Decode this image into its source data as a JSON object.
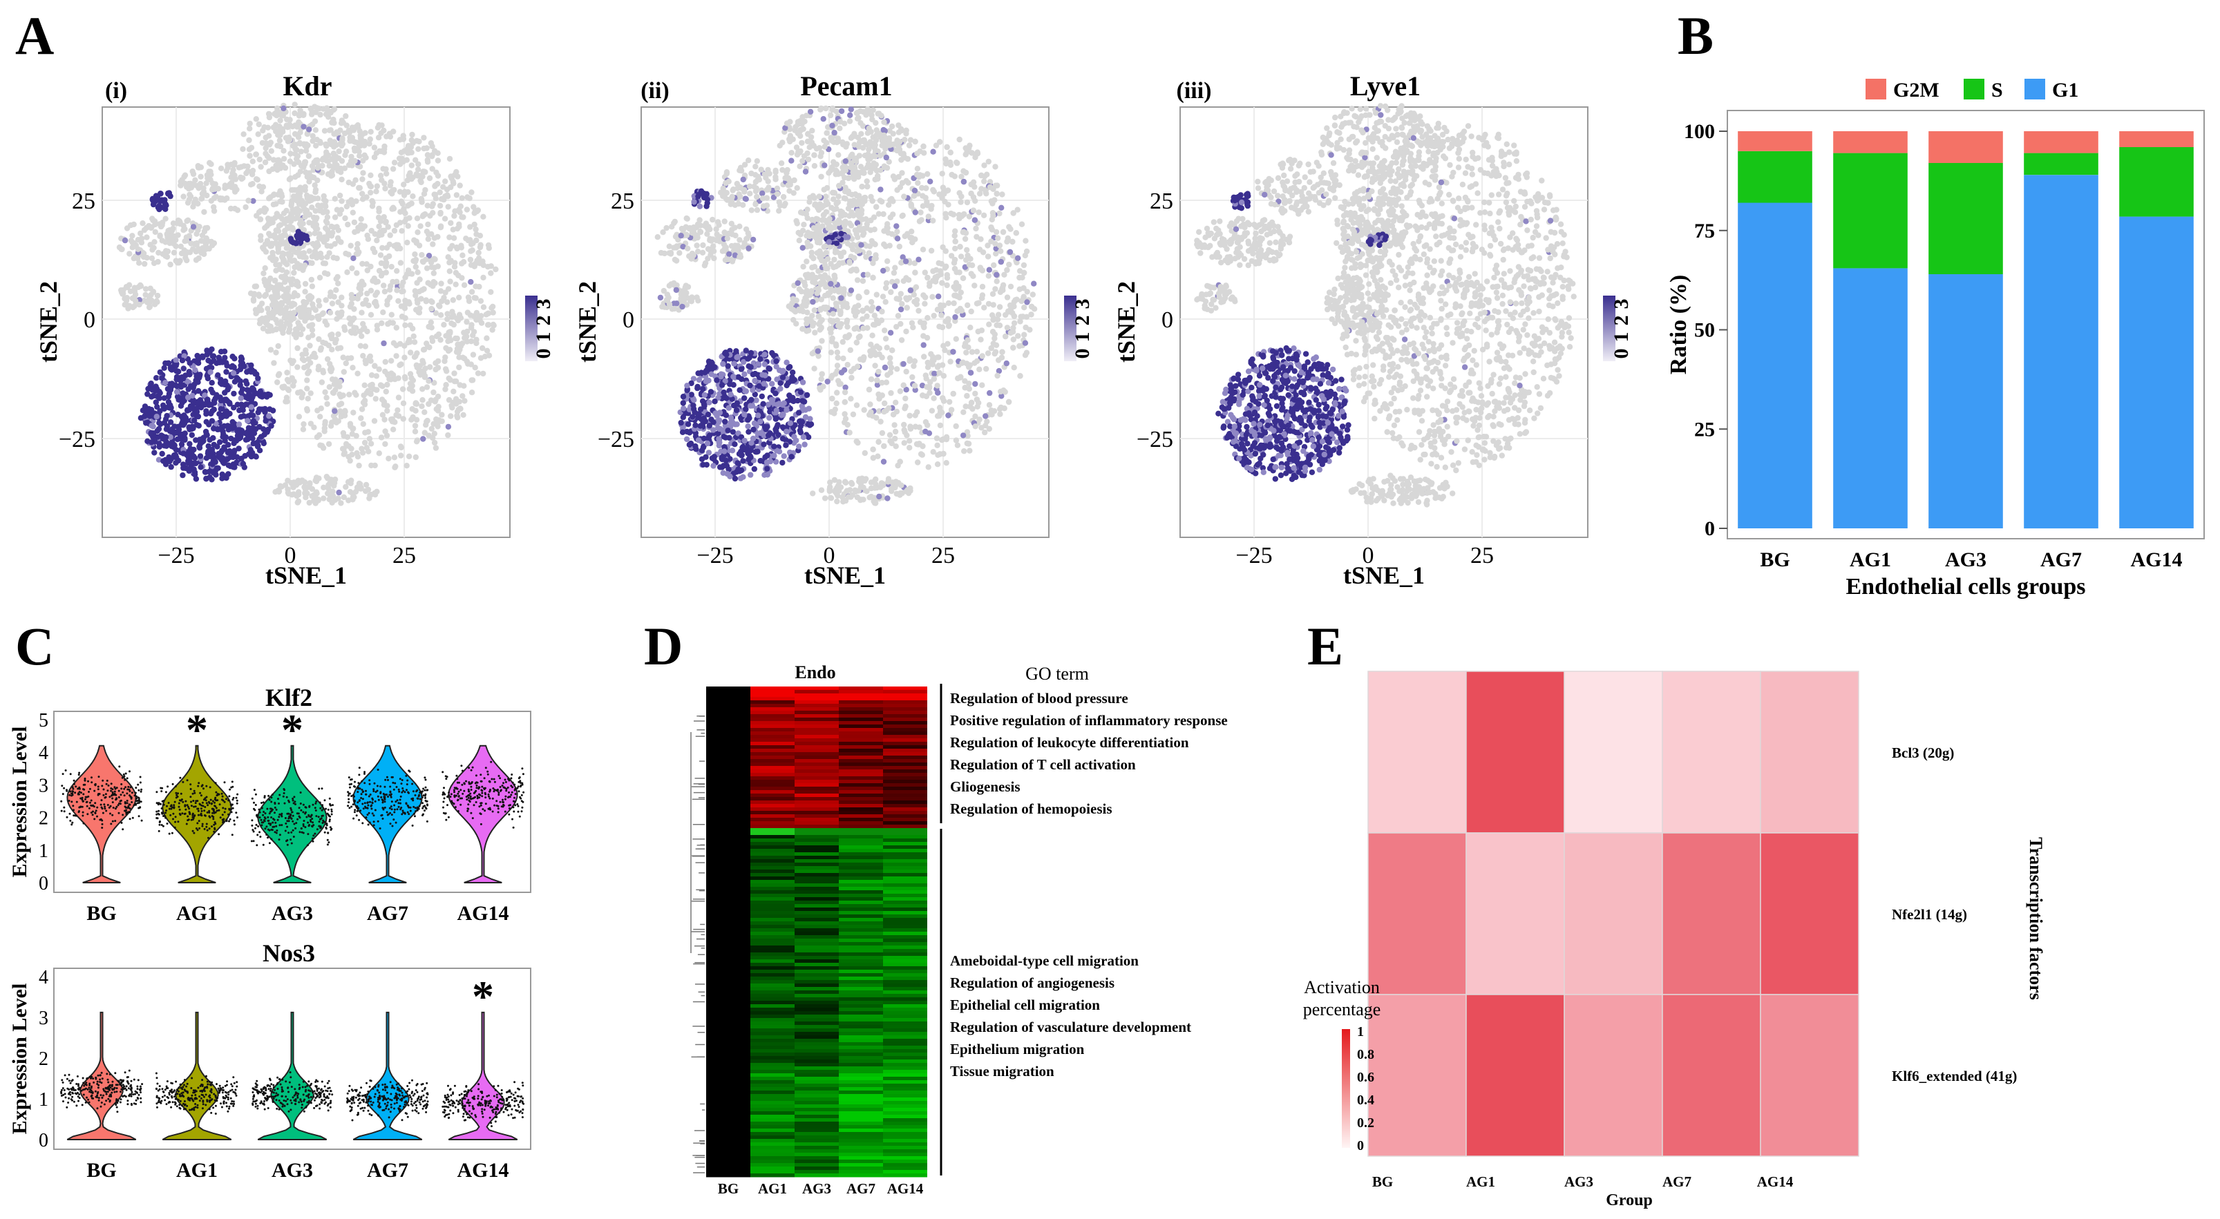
{
  "panel_letters": {
    "A": "A",
    "B": "B",
    "C": "C",
    "D": "D",
    "E": "E"
  },
  "tsne": {
    "xlabel": "tSNE_1",
    "ylabel": "tSNE_2",
    "x_ticks": [
      "−25",
      "0",
      "25"
    ],
    "y_ticks": [
      "25",
      "0",
      "−25"
    ],
    "plots": [
      {
        "tag": "(i)",
        "gene": "Kdr",
        "legend_ticks": [
          "3",
          "2",
          "1",
          "0"
        ]
      },
      {
        "tag": "(ii)",
        "gene": "Pecam1",
        "legend_ticks": [
          "3",
          "2",
          "1",
          "0"
        ]
      },
      {
        "tag": "(iii)",
        "gene": "Lyve1",
        "legend_ticks": [
          "3",
          "2",
          "1",
          "0"
        ]
      }
    ]
  },
  "chart_data": [
    {
      "id": "B",
      "type": "bar",
      "stacked": true,
      "title": "",
      "xlabel": "Endothelial cells groups",
      "ylabel": "Ratio (%)",
      "categories": [
        "BG",
        "AG1",
        "AG3",
        "AG7",
        "AG14"
      ],
      "ylim": [
        0,
        100
      ],
      "y_ticks": [
        "0",
        "25",
        "50",
        "75",
        "100"
      ],
      "legend_position": "top",
      "series": [
        {
          "name": "G1",
          "color": "#3d9bf5",
          "values": [
            82,
            65.5,
            64,
            89,
            78.5
          ]
        },
        {
          "name": "S",
          "color": "#16c516",
          "values": [
            13,
            29,
            28,
            5.5,
            17.5
          ]
        },
        {
          "name": "G2M",
          "color": "#f47266",
          "values": [
            5,
            5.5,
            8,
            5.5,
            4
          ]
        }
      ],
      "legend_order": [
        "G2M",
        "S",
        "G1"
      ]
    },
    {
      "id": "C1",
      "type": "violin",
      "title": "Klf2",
      "ylabel": "Expression Level",
      "categories": [
        "BG",
        "AG1",
        "AG3",
        "AG7",
        "AG14"
      ],
      "colors": [
        "#f8766d",
        "#a3a500",
        "#00bf7d",
        "#00b0f6",
        "#e76bf3"
      ],
      "ylim": [
        0,
        5
      ],
      "y_ticks": [
        "0",
        "1",
        "2",
        "3",
        "4",
        "5"
      ],
      "medians": [
        2.6,
        2.3,
        2.0,
        2.6,
        2.7
      ],
      "significant": [
        "AG1",
        "AG3"
      ],
      "marker": "*"
    },
    {
      "id": "C2",
      "type": "violin",
      "title": "Nos3",
      "ylabel": "Expression Level",
      "categories": [
        "BG",
        "AG1",
        "AG3",
        "AG7",
        "AG14"
      ],
      "colors": [
        "#f8766d",
        "#a3a500",
        "#00bf7d",
        "#00b0f6",
        "#e76bf3"
      ],
      "ylim": [
        0,
        4
      ],
      "y_ticks": [
        "0",
        "1",
        "2",
        "3",
        "4"
      ],
      "medians": [
        1.2,
        1.1,
        1.1,
        1.0,
        0.9
      ],
      "significant": [
        "AG14"
      ],
      "marker": "*"
    },
    {
      "id": "D",
      "type": "heatmap",
      "title": "Endo",
      "columns": [
        "BG",
        "AG1",
        "AG3",
        "AG7",
        "AG14"
      ],
      "go_header": "GO term",
      "go_terms_up": [
        "Regulation of blood pressure",
        "Positive regulation of inflammatory response",
        "Regulation of leukocyte differentiation",
        "Regulation of T cell activation",
        "Gliogenesis",
        "Regulation of hemopoiesis"
      ],
      "go_terms_down": [
        "Ameboidal-type cell migration",
        "Regulation of angiogenesis",
        "Epithelial cell migration",
        "Regulation of vasculature development",
        "Epithelium migration",
        "Tissue migration"
      ]
    },
    {
      "id": "E",
      "type": "heatmap",
      "xlabel": "Group",
      "ylabel": "Transcription factors",
      "columns": [
        "BG",
        "AG1",
        "AG3",
        "AG7",
        "AG14"
      ],
      "rows": [
        "Bcl3 (20g)",
        "Nfe2l1 (14g)",
        "Klf6_extended (41g)"
      ],
      "values": [
        [
          0.2,
          0.9,
          0.08,
          0.2,
          0.3
        ],
        [
          0.65,
          0.25,
          0.3,
          0.7,
          0.85
        ],
        [
          0.45,
          0.9,
          0.45,
          0.75,
          0.55
        ]
      ],
      "colorbar_title": "Activation percentage",
      "colorbar_ticks": [
        "1",
        "0.8",
        "0.6",
        "0.4",
        "0.2",
        "0"
      ]
    }
  ],
  "colors": {
    "tsne_gray": "#d7d7d7",
    "tsne_expr": "#3a2f8f",
    "heat_red": "#e41a1c",
    "heat_green": "#1ec81e"
  }
}
